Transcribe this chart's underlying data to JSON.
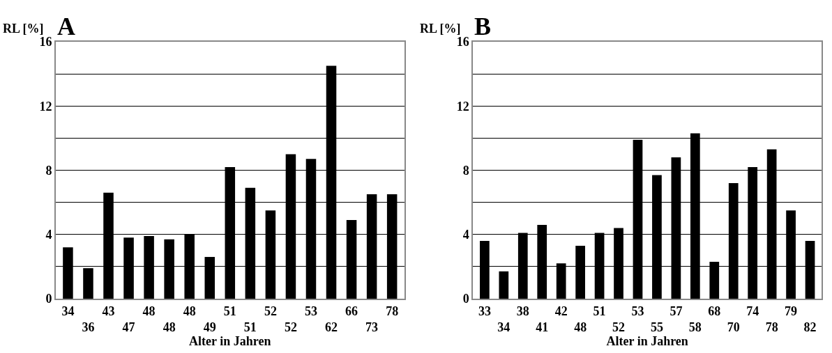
{
  "chart_data": [
    {
      "type": "bar",
      "title": "A",
      "ylabel": "RL [%]",
      "xlabel": "Alter in Jahren",
      "categories": [
        "34",
        "36",
        "43",
        "47",
        "48",
        "48",
        "48",
        "49",
        "51",
        "51",
        "52",
        "52",
        "53",
        "62",
        "66",
        "73",
        "78"
      ],
      "values": [
        3.2,
        1.9,
        6.6,
        3.8,
        3.9,
        3.7,
        4.0,
        2.6,
        8.2,
        6.9,
        5.5,
        9.0,
        8.7,
        14.5,
        4.9,
        6.5,
        6.5
      ],
      "color": "#000000",
      "ylim": [
        0,
        16
      ],
      "yticks": [
        0,
        {
          "value": 2,
          "label": null
        },
        4,
        {
          "value": 6,
          "label": null
        },
        8,
        {
          "value": 10,
          "label": null
        },
        12,
        {
          "value": 14,
          "label": null
        },
        16
      ],
      "grid": "y"
    },
    {
      "type": "bar",
      "title": "B",
      "ylabel": "RL [%]",
      "xlabel": "Alter in Jahren",
      "categories": [
        "33",
        "34",
        "38",
        "41",
        "42",
        "48",
        "51",
        "52",
        "53",
        "55",
        "57",
        "58",
        "68",
        "70",
        "74",
        "78",
        "79",
        "82"
      ],
      "values": [
        3.6,
        1.7,
        4.1,
        4.6,
        2.2,
        3.3,
        4.1,
        4.4,
        9.9,
        7.7,
        8.8,
        10.3,
        2.3,
        7.2,
        8.2,
        9.3,
        5.5,
        3.6
      ],
      "color": "#000000",
      "ylim": [
        0,
        16
      ],
      "yticks": [
        0,
        {
          "value": 2,
          "label": null
        },
        4,
        {
          "value": 6,
          "label": null
        },
        8,
        {
          "value": 10,
          "label": null
        },
        12,
        {
          "value": 14,
          "label": null
        },
        16
      ],
      "grid": "y"
    }
  ]
}
